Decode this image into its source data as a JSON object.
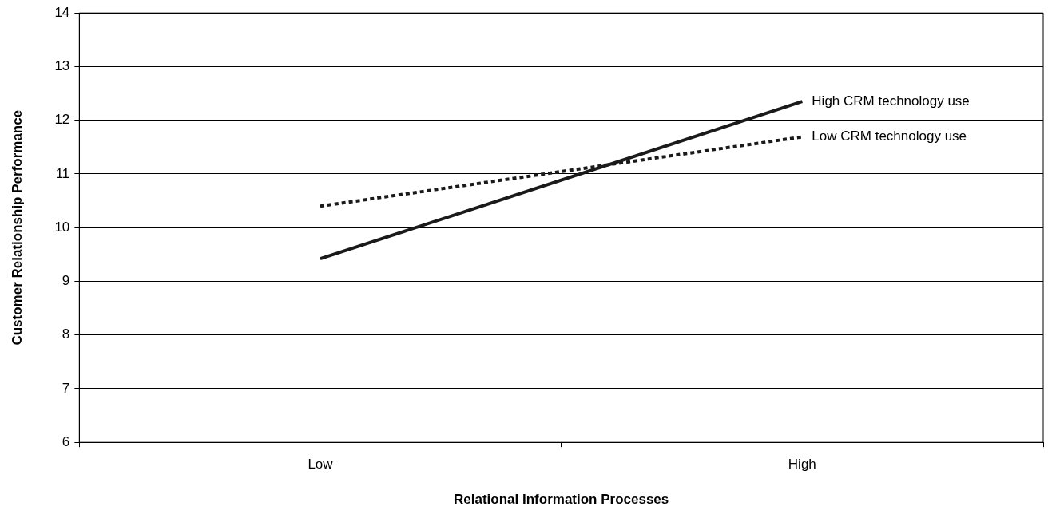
{
  "chart_data": {
    "type": "line",
    "xlabel": "Relational Information Processes",
    "ylabel": "Customer Relationship Performance",
    "categories": [
      "Low",
      "High"
    ],
    "series": [
      {
        "name": "High CRM technology use",
        "color": "#1a1a1a",
        "line_style": "solid",
        "values": [
          9.42,
          12.35
        ]
      },
      {
        "name": "Low CRM technology use",
        "color": "#1a1a1a",
        "line_style": "dotted",
        "values": [
          10.4,
          11.69
        ]
      }
    ],
    "ylim": [
      6,
      14
    ],
    "yticks": [
      6,
      7,
      8,
      9,
      10,
      11,
      12,
      13,
      14
    ],
    "grid": "y",
    "legend": false,
    "marker": "none"
  }
}
